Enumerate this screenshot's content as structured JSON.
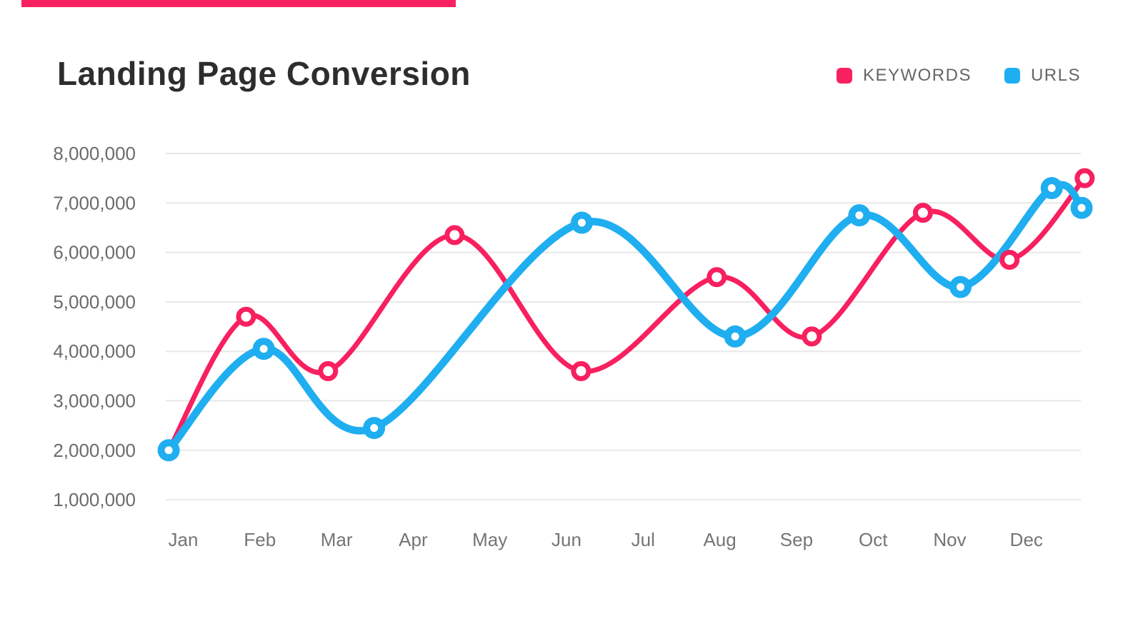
{
  "header": {
    "title": "Landing Page Conversion"
  },
  "decor": {
    "top_bar_color": "#F8205F"
  },
  "legend": {
    "items": [
      {
        "label": "KEYWORDS",
        "color": "#F8205F"
      },
      {
        "label": "URLS",
        "color": "#1FAEF0"
      }
    ]
  },
  "chart_data": {
    "type": "line",
    "title": "Landing Page Conversion",
    "legend_position": "top-right",
    "grid": "horizontal",
    "categories": [
      "Jan",
      "Feb",
      "Mar",
      "Apr",
      "May",
      "Jun",
      "Jul",
      "Aug",
      "Sep",
      "Oct",
      "Nov",
      "Dec"
    ],
    "y_axis": {
      "min": 1000000,
      "max": 8000000,
      "tick_step": 1000000,
      "tick_labels_top_down": [
        "8,000,000",
        "7,000,000",
        "6,000,000",
        "5,000,000",
        "4,000,000",
        "3,000,000",
        "2,000,000",
        "1,000,000"
      ],
      "grid_color": "#E8E8E8",
      "label_color": "#6B6B6B"
    },
    "x_axis": {
      "label_color": "#757575"
    },
    "series": [
      {
        "name": "KEYWORDS",
        "color": "#F8205F",
        "marker_style": "white-ring",
        "points": [
          {
            "x": -0.19,
            "value": 2000000,
            "marker": false
          },
          {
            "x": 0.82,
            "value": 4700000,
            "marker": true
          },
          {
            "x": 1.89,
            "value": 3600000,
            "marker": true
          },
          {
            "x": 3.54,
            "value": 6350000,
            "marker": true
          },
          {
            "x": 5.19,
            "value": 3600000,
            "marker": true
          },
          {
            "x": 6.96,
            "value": 5500000,
            "marker": true
          },
          {
            "x": 8.2,
            "value": 4300000,
            "marker": true
          },
          {
            "x": 9.65,
            "value": 6800000,
            "marker": true
          },
          {
            "x": 10.78,
            "value": 5850000,
            "marker": true
          },
          {
            "x": 11.76,
            "value": 7500000,
            "marker": true
          }
        ]
      },
      {
        "name": "URLS",
        "color": "#1FAEF0",
        "marker_style": "donut",
        "points": [
          {
            "x": -0.19,
            "value": 2000000,
            "marker": true
          },
          {
            "x": 1.05,
            "value": 4050000,
            "marker": true
          },
          {
            "x": 2.49,
            "value": 2450000,
            "marker": true
          },
          {
            "x": 5.2,
            "value": 6600000,
            "marker": true
          },
          {
            "x": 7.2,
            "value": 4300000,
            "marker": true
          },
          {
            "x": 8.82,
            "value": 6750000,
            "marker": true
          },
          {
            "x": 10.14,
            "value": 5300000,
            "marker": true
          },
          {
            "x": 11.33,
            "value": 7300000,
            "marker": true
          },
          {
            "x": 11.72,
            "value": 6900000,
            "marker": true
          }
        ]
      }
    ]
  }
}
